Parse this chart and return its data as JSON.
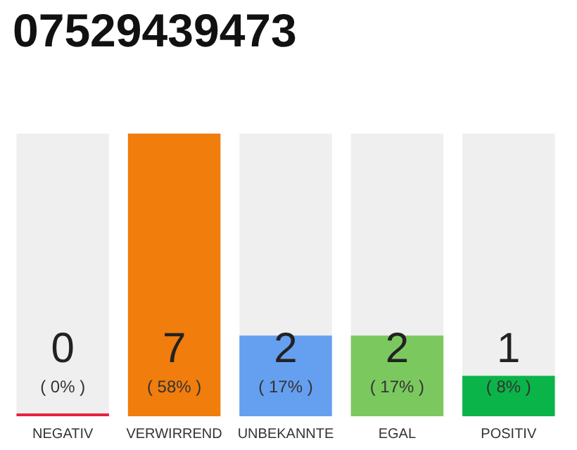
{
  "chart_data": {
    "type": "bar",
    "title": "07529439473",
    "categories": [
      "NEGATIV",
      "VERWIRREND",
      "UNBEKANNTE",
      "EGAL",
      "POSITIV"
    ],
    "values": [
      0,
      7,
      2,
      2,
      1
    ],
    "colors": [
      "#e8213f",
      "#f07d0c",
      "#659ff0",
      "#7bc95e",
      "#0bb448"
    ],
    "value_labels": [
      "0\n( 0% )",
      "7\n( 58% )",
      "2\n( 17% )",
      "2\n( 17% )",
      "1\n( 8% )"
    ],
    "grid": false
  }
}
